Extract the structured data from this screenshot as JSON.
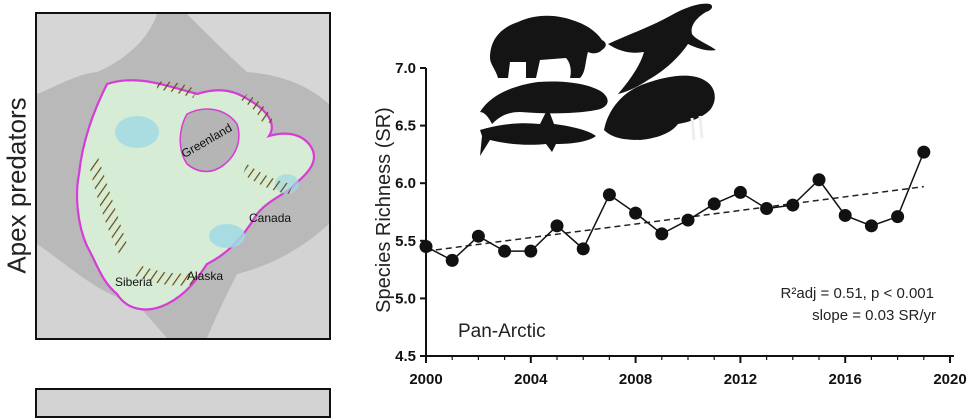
{
  "panel": {
    "row_label": "Apex predators",
    "map_labels": {
      "greenland": "Greenland",
      "canada": "Canada",
      "siberia": "Siberia",
      "alaska": "Alaska"
    },
    "animal_icons": [
      "polar-bear-icon",
      "seal-icon",
      "whale-icon",
      "walrus-icon",
      "shark-icon"
    ]
  },
  "colors": {
    "outline": "#d63cd6",
    "land": "#c9c9c9",
    "sea_interior": "#d6ecd4",
    "hotspot": "#9fd9e4",
    "hatch": "#6a4a10",
    "marker": "#111111"
  },
  "chart_data": {
    "type": "line",
    "title": "",
    "xlabel": "",
    "ylabel": "Species Richness (SR)",
    "region": "Pan-Arctic",
    "stats_line1": "R²adj = 0.51, p < 0.001",
    "stats_line2": "slope = 0.03 SR/yr",
    "xlim": [
      2000,
      2020
    ],
    "ylim": [
      4.5,
      7.0
    ],
    "x_ticks": [
      2000,
      2004,
      2008,
      2012,
      2016,
      2020
    ],
    "y_ticks": [
      4.5,
      5.0,
      5.5,
      6.0,
      6.5,
      7.0
    ],
    "y_tick_labels": [
      "4.5",
      "5.0",
      "5.5",
      "6.0",
      "6.5",
      "7.0"
    ],
    "grid": false,
    "series": [
      {
        "x": [
          2000,
          2001,
          2002,
          2003,
          2004,
          2005,
          2006,
          2007,
          2008,
          2009,
          2010,
          2011,
          2012,
          2013,
          2014,
          2015,
          2016,
          2017,
          2018,
          2019
        ],
        "values": [
          5.45,
          5.33,
          5.54,
          5.41,
          5.41,
          5.63,
          5.43,
          5.9,
          5.74,
          5.56,
          5.68,
          5.82,
          5.92,
          5.78,
          5.81,
          6.03,
          5.72,
          5.63,
          5.71,
          6.27
        ]
      }
    ],
    "trend": {
      "x": [
        2000,
        2019
      ],
      "y": [
        5.41,
        5.97
      ]
    }
  }
}
